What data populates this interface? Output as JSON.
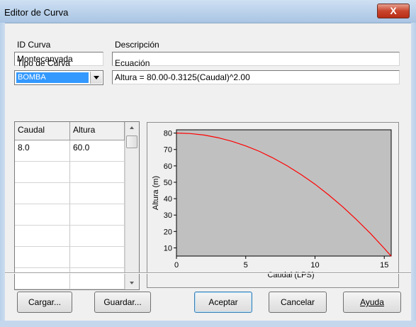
{
  "window": {
    "title": "Editor de Curva",
    "close_label": "X"
  },
  "form": {
    "id_label": "ID Curva",
    "id_value": "Montecanyada",
    "desc_label": "Descripción",
    "desc_value": "",
    "type_label": "Tipo de Curva",
    "type_value": "BOMBA",
    "eq_label": "Ecuación",
    "eq_value": "Altura = 80.00-0.3125(Caudal)^2.00"
  },
  "table": {
    "headers": [
      "Caudal",
      "Altura"
    ],
    "rows": [
      [
        "8.0",
        "60.0"
      ],
      [
        "",
        ""
      ],
      [
        "",
        ""
      ],
      [
        "",
        ""
      ],
      [
        "",
        ""
      ],
      [
        "",
        ""
      ],
      [
        "",
        ""
      ]
    ]
  },
  "chart_data": {
    "type": "line",
    "title": "",
    "xlabel": "Caudal (LPS)",
    "ylabel": "Altura (m)",
    "xlim": [
      0,
      15.5
    ],
    "ylim": [
      5,
      82
    ],
    "x_ticks": [
      0,
      5,
      10,
      15
    ],
    "y_ticks": [
      10,
      20,
      30,
      40,
      50,
      60,
      70,
      80
    ],
    "series": [
      {
        "x": [
          0,
          1,
          2,
          3,
          4,
          5,
          6,
          7,
          8,
          9,
          10,
          11,
          12,
          13,
          14,
          15,
          15.5
        ],
        "y": [
          80,
          79.7,
          78.8,
          77.2,
          75,
          72.2,
          68.8,
          64.7,
          60,
          54.7,
          48.8,
          42.2,
          35,
          27.2,
          18.8,
          9.7,
          4.9
        ]
      }
    ],
    "line_color": "#ff0000",
    "plot_background": "#c0c0c0",
    "grid": false,
    "legend": "none"
  },
  "buttons": {
    "load": "Cargar...",
    "save": "Guardar...",
    "accept": "Aceptar",
    "cancel": "Cancelar",
    "help": "Ayuda"
  },
  "colors": {
    "selection": "#3399ff",
    "curve": "#ff0000",
    "title_bar": "#b9d1ea"
  }
}
